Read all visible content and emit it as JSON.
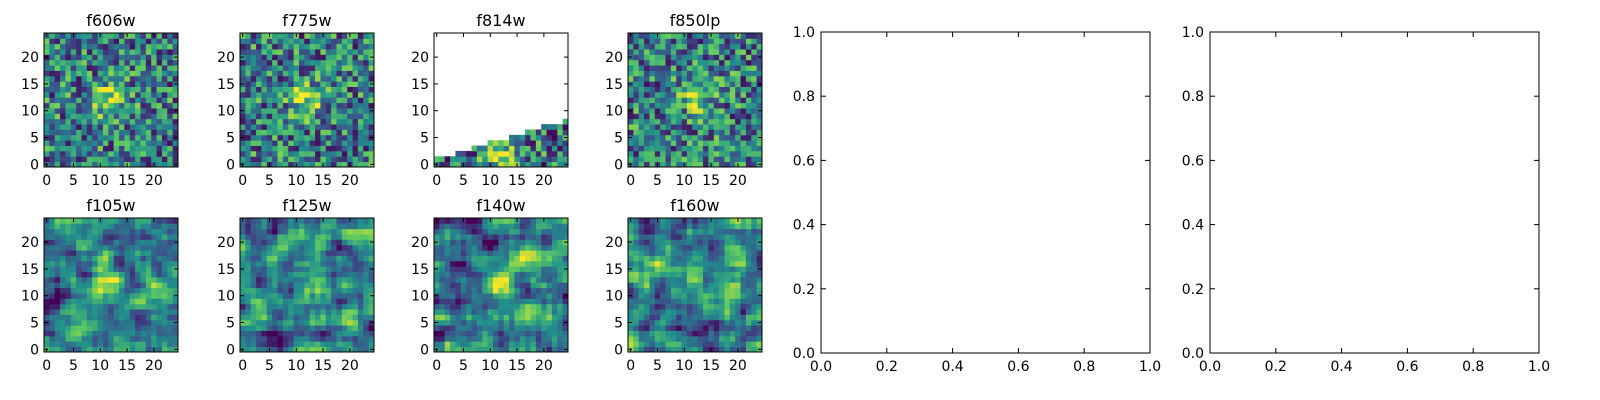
{
  "colormap": [
    "#440154",
    "#3b528b",
    "#21918c",
    "#5ec962",
    "#fde725"
  ],
  "chart_data": {
    "type": "heatmap",
    "image_panels": [
      {
        "title": "f606w",
        "grid": 25,
        "mode": "noise",
        "seed": 606,
        "blob": [
          12,
          12
        ],
        "xticks": [
          0,
          5,
          10,
          15,
          20
        ],
        "yticks": [
          0,
          5,
          10,
          15,
          20
        ]
      },
      {
        "title": "f775w",
        "grid": 25,
        "mode": "noise",
        "seed": 775,
        "blob": [
          12,
          12
        ],
        "xticks": [
          0,
          5,
          10,
          15,
          20
        ],
        "yticks": [
          0,
          5,
          10,
          15,
          20
        ]
      },
      {
        "title": "f814w",
        "grid": 25,
        "mode": "wedge",
        "seed": 814,
        "blob": [
          12,
          2
        ],
        "xticks": [
          0,
          5,
          10,
          15,
          20
        ],
        "yticks": [
          0,
          5,
          10,
          15,
          20
        ]
      },
      {
        "title": "f850lp",
        "grid": 25,
        "mode": "noise",
        "seed": 850,
        "blob": [
          12,
          13
        ],
        "xticks": [
          0,
          5,
          10,
          15,
          20
        ],
        "yticks": [
          0,
          5,
          10,
          15,
          20
        ]
      },
      {
        "title": "f105w",
        "grid": 25,
        "mode": "smooth",
        "seed": 105,
        "blob": [
          11,
          13
        ],
        "xticks": [
          0,
          5,
          10,
          15,
          20
        ],
        "yticks": [
          0,
          5,
          10,
          15,
          20
        ]
      },
      {
        "title": "f125w",
        "grid": 25,
        "mode": "smooth",
        "seed": 125,
        "blob": [
          13,
          12
        ],
        "xticks": [
          0,
          5,
          10,
          15,
          20
        ],
        "yticks": [
          0,
          5,
          10,
          15,
          20
        ]
      },
      {
        "title": "f140w",
        "grid": 25,
        "mode": "smooth",
        "seed": 140,
        "blob": [
          12,
          12
        ],
        "xticks": [
          0,
          5,
          10,
          15,
          20
        ],
        "yticks": [
          0,
          5,
          10,
          15,
          20
        ]
      },
      {
        "title": "f160w",
        "grid": 25,
        "mode": "smooth",
        "seed": 160,
        "blob": [
          12,
          12
        ],
        "xticks": [
          0,
          5,
          10,
          15,
          20
        ],
        "yticks": [
          0,
          5,
          10,
          15,
          20
        ]
      }
    ],
    "empty_axes": [
      {
        "xlim": [
          0,
          1
        ],
        "ylim": [
          0,
          1
        ],
        "xticks": [
          "0.0",
          "0.2",
          "0.4",
          "0.6",
          "0.8",
          "1.0"
        ],
        "yticks": [
          "0.0",
          "0.2",
          "0.4",
          "0.6",
          "0.8",
          "1.0"
        ]
      },
      {
        "xlim": [
          0,
          1
        ],
        "ylim": [
          0,
          1
        ],
        "xticks": [
          "0.0",
          "0.2",
          "0.4",
          "0.6",
          "0.8",
          "1.0"
        ],
        "yticks": [
          "0.0",
          "0.2",
          "0.4",
          "0.6",
          "0.8",
          "1.0"
        ]
      }
    ]
  }
}
